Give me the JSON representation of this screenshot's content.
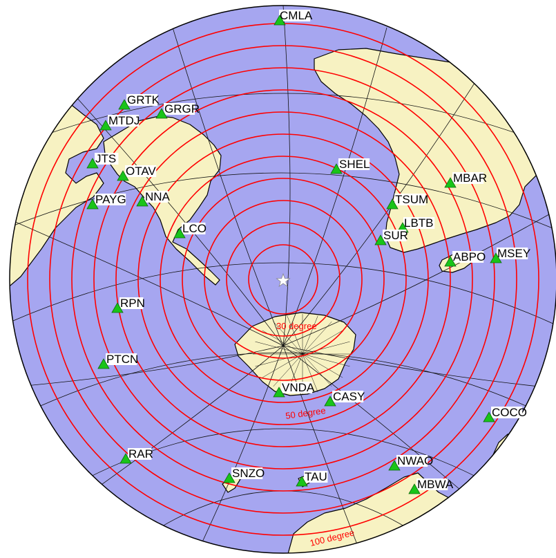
{
  "colors": {
    "ocean": "#a6a6f0",
    "land": "#f7f2c2",
    "coast": "#000000",
    "graticule": "#111111",
    "distance_rings": "#ff0000",
    "station_fill": "#19c419",
    "station_stroke": "#0a6a0a",
    "epicenter": "#ffffff",
    "label_bg": "#ffffff"
  },
  "icons": {
    "epicenter": "star-icon",
    "station": "triangle-icon"
  },
  "distance_labels": {
    "d30": "30 degree",
    "d50": "50 degree",
    "d100": "100 degree"
  },
  "stations": [
    {
      "code": "CMLA"
    },
    {
      "code": "GRTK"
    },
    {
      "code": "GRGR"
    },
    {
      "code": "MTDJ"
    },
    {
      "code": "JTS"
    },
    {
      "code": "OTAV"
    },
    {
      "code": "PAYG"
    },
    {
      "code": "NNA"
    },
    {
      "code": "SHEL"
    },
    {
      "code": "MBAR"
    },
    {
      "code": "TSUM"
    },
    {
      "code": "LBTB"
    },
    {
      "code": "SUR"
    },
    {
      "code": "LCO"
    },
    {
      "code": "ABPO"
    },
    {
      "code": "MSEY"
    },
    {
      "code": "RPN"
    },
    {
      "code": "PTCN"
    },
    {
      "code": "VNDA"
    },
    {
      "code": "CASY"
    },
    {
      "code": "COCO"
    },
    {
      "code": "RAR"
    },
    {
      "code": "NWAO"
    },
    {
      "code": "SNZO"
    },
    {
      "code": "TAU"
    },
    {
      "code": "MBWA"
    }
  ]
}
